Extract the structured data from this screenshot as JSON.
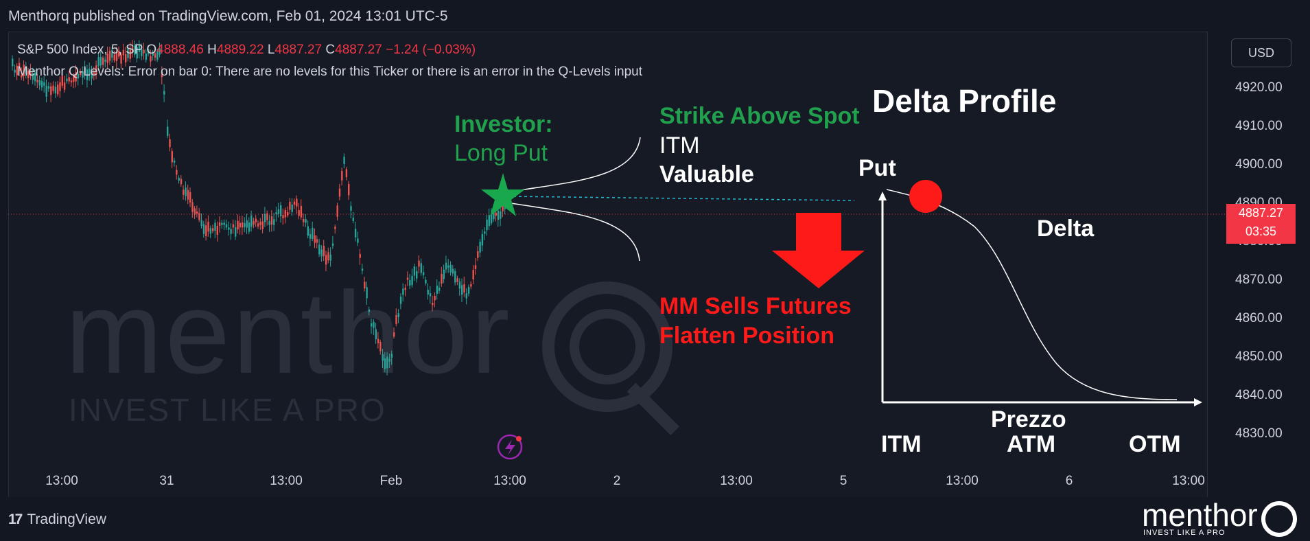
{
  "header": {
    "publisher": "Menthorq published on TradingView.com, Feb 01, 2024 13:01 UTC-5"
  },
  "legend": {
    "symbol": "S&P 500 Index, 5, SP",
    "open_label": "O",
    "open": "4888.46",
    "high_label": "H",
    "high": "4889.22",
    "low_label": "L",
    "low": "4887.27",
    "close_label": "C",
    "close": "4887.27",
    "change": "−1.24 (−0.03%)",
    "indicator_message": "Menthor Q-Levels: Error on bar 0: There are no levels for this Ticker or there is an error in the Q-Levels input"
  },
  "currency_button": "USD",
  "price_axis": [
    "4920.00",
    "4910.00",
    "4900.00",
    "4890.00",
    "4880.00",
    "4870.00",
    "4860.00",
    "4850.00",
    "4840.00",
    "4830.00"
  ],
  "current_price": {
    "value": "4887.27",
    "countdown": "03:35"
  },
  "time_axis": [
    "13:00",
    "31",
    "13:00",
    "Feb",
    "13:00",
    "2",
    "13:00",
    "5",
    "13:00",
    "6",
    "13:00"
  ],
  "watermark": {
    "brand": "menthor",
    "tagline": "INVEST LIKE A PRO"
  },
  "annotations": {
    "investor_title": "Investor:",
    "investor_position": "Long Put",
    "strike_title": "Strike Above Spot",
    "itm": "ITM",
    "valuable": "Valuable",
    "mm_line1": "MM Sells Futures",
    "mm_line2": "Flatten Position",
    "delta_profile_title": "Delta Profile",
    "put_label": "Put",
    "delta_label": "Delta",
    "x_axis_label": "Prezzo",
    "x_itm": "ITM",
    "x_atm": "ATM",
    "x_otm": "OTM"
  },
  "footer": {
    "tradingview": "TradingView",
    "menthor_brand": "menthor",
    "menthor_tagline": "INVEST LIKE A PRO"
  },
  "colors": {
    "up": "#26a69a",
    "down": "#ef5350",
    "green_text": "#21a14d",
    "red_text": "#ff1a1a",
    "red_marker": "#ff1a1a"
  }
}
